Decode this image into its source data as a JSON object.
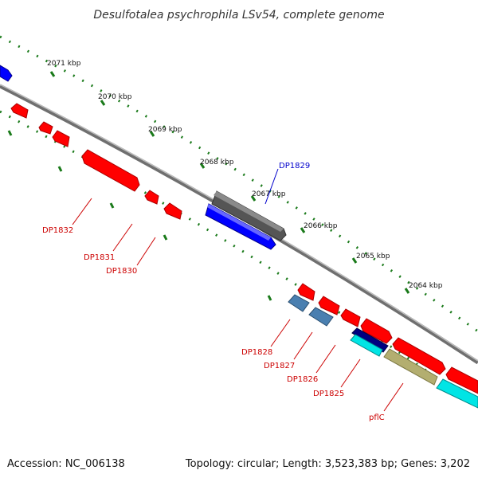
{
  "title": "Desulfotalea psychrophila LSv54, complete genome",
  "footer": {
    "accession": "Accession: NC_006138",
    "summary": "Topology: circular; Length: 3,523,383 bp; Genes: 3,202"
  },
  "colors": {
    "backbone": "#8c8c8c",
    "tick_green": "#1a7a1a",
    "forward_gene": "#0000ff",
    "reverse_gene": "#ff0000",
    "highlight_gene": "#555555",
    "label_red": "#cc0000",
    "label_blue": "#0000cc",
    "steel_blue": "#4a7fb0",
    "navy": "#000080",
    "cyan": "#00e5e5",
    "olive": "#b3ae70"
  },
  "scale_labels": [
    "2071 kbp",
    "2070 kbp",
    "2069 kbp",
    "2068 kbp",
    "2067 kbp",
    "2066 kbp",
    "2065 kbp",
    "2064 kbp"
  ],
  "gene_labels": [
    "DP1829",
    "DP1832",
    "DP1831",
    "DP1830",
    "DP1828",
    "DP1827",
    "DP1826",
    "DP1825",
    "pflC"
  ]
}
